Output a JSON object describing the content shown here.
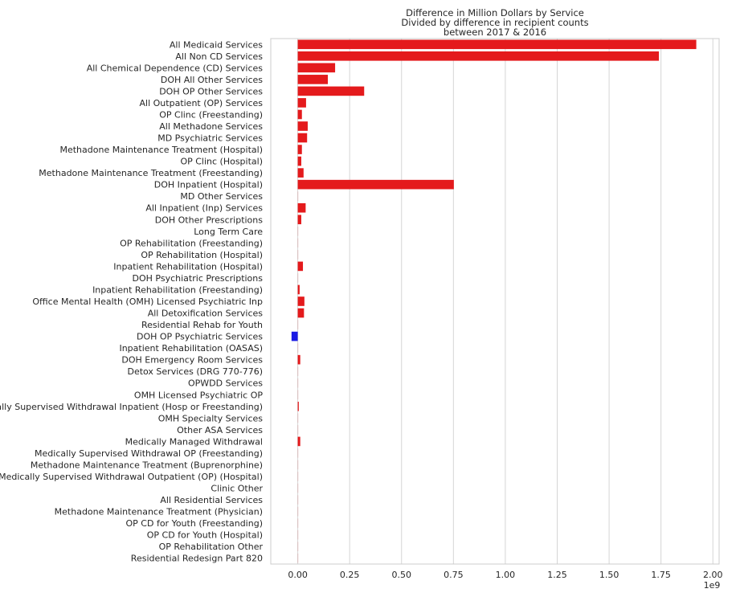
{
  "chart_data": {
    "type": "bar",
    "orientation": "horizontal",
    "title": "Difference in Million Dollars by Service\nDivided by difference in recipient counts\nbetween 2017 & 2016",
    "title_lines": [
      "Difference in Million Dollars by Service",
      "Divided by difference in recipient counts",
      "between 2017 & 2016"
    ],
    "xlabel": "",
    "ylabel": "",
    "x_offset_label": "1e9",
    "xlim": [
      -0.13,
      2.03
    ],
    "x_ticks": [
      0.0,
      0.25,
      0.5,
      0.75,
      1.0,
      1.25,
      1.5,
      1.75,
      2.0
    ],
    "x_tick_labels": [
      "0.00",
      "0.25",
      "0.50",
      "0.75",
      "1.00",
      "1.25",
      "1.50",
      "1.75",
      "2.00"
    ],
    "grid": "x",
    "colors": {
      "positive": "#e41a1c",
      "negative": "#1a1ae4",
      "grid": "#d5d5d5",
      "axis": "#cccccc",
      "text": "#262626"
    },
    "categories": [
      "All Medicaid Services",
      "All Non CD Services",
      "All Chemical Dependence (CD) Services",
      "DOH All Other Services",
      "DOH OP Other Services",
      "All Outpatient (OP) Services",
      "OP Clinc (Freestanding)",
      "All Methadone Services",
      "MD Psychiatric Services",
      "Methadone Maintenance Treatment (Hospital)",
      "OP Clinc (Hospital)",
      "Methadone Maintenance Treatment (Freestanding)",
      "DOH Inpatient (Hospital)",
      "MD Other Services",
      "All Inpatient (Inp) Services",
      "DOH Other Prescriptions",
      "Long Term Care",
      "OP Rehabilitation (Freestanding)",
      "OP Rehabilitation (Hospital)",
      "Inpatient Rehabilitation (Hospital)",
      "DOH Psychiatric Prescriptions",
      "Inpatient Rehabilitation (Freestanding)",
      "Office Mental Health (OMH) Licensed Psychiatric Inp",
      "All Detoxification Services",
      "Residential Rehab for Youth",
      "DOH OP Psychiatric Services",
      "Inpatient Rehabilitation (OASAS)",
      "DOH Emergency Room Services",
      "Detox Services (DRG 770-776)",
      "OPWDD Services",
      "OMH Licensed Psychiatric OP",
      "Medically Supervised Withdrawal Inpatient (Hosp or Freestanding)",
      "OMH Specialty Services",
      "Other ASA Services",
      "Medically Managed Withdrawal",
      "Medically Supervised Withdrawal OP (Freestanding)",
      "Methadone Maintenance Treatment (Buprenorphine)",
      "Medically Supervised Withdrawal Outpatient (OP) (Hospital)",
      "Clinic Other",
      "All Residential Services",
      "Methadone Maintenance Treatment (Physician)",
      "OP CD for Youth (Freestanding)",
      "OP CD for Youth (Hospital)",
      "OP Rehabilitation Other",
      "Residential Redesign Part 820"
    ],
    "values": [
      1.92,
      1.74,
      0.18,
      0.145,
      0.32,
      0.04,
      0.02,
      0.048,
      0.045,
      0.02,
      0.017,
      0.028,
      0.752,
      0.0,
      0.038,
      0.017,
      0.0,
      0.0,
      0.0,
      0.025,
      0.0,
      0.009,
      0.032,
      0.03,
      0.0,
      -0.03,
      0.0,
      0.012,
      0.0,
      0.0,
      0.0,
      0.005,
      0.0,
      0.0,
      0.012,
      0.0,
      0.0,
      0.0,
      0.0,
      0.0,
      0.0,
      0.0,
      0.0,
      0.0,
      0.0
    ]
  }
}
